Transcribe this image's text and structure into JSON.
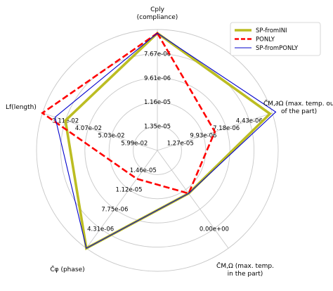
{
  "chart_data": {
    "type": "radar",
    "axes": [
      {
        "id": "cply",
        "label": [
          "Cply",
          "(compliance)"
        ],
        "ticks": [
          "7.67e-06",
          "9.61e-06",
          "1.16e-05",
          "1.35e-05"
        ]
      },
      {
        "id": "cm_dom",
        "label": [
          "C̄M,∂Ω (max. temp. out",
          "of the part)"
        ],
        "ticks": [
          "4.43e-06",
          "7.18e-06",
          "9.93e-06",
          "1.27e-05"
        ]
      },
      {
        "id": "cm_om",
        "label": [
          "C̄M,Ω (max. temp.",
          "in the part)"
        ],
        "ticks": [
          "0.00e+00"
        ]
      },
      {
        "id": "cphi",
        "label": [
          "C̄φ (phase)"
        ],
        "ticks": [
          "4.31e-06",
          "7.75e-06",
          "1.12e-05",
          "1.46e-05"
        ]
      },
      {
        "id": "lf",
        "label": [
          "Lf(length)"
        ],
        "ticks": [
          "3.11e-02",
          "4.07e-02",
          "5.03e-02",
          "5.99e-02"
        ]
      }
    ],
    "rings": 5,
    "series": [
      {
        "name": "SP-fromINI",
        "color": "#bcbd22",
        "style": "solid",
        "values": [
          0.97,
          0.98,
          0.44,
          1.0,
          0.8
        ]
      },
      {
        "name": "PONLY",
        "color": "#ff0000",
        "style": "dashed",
        "values": [
          0.97,
          0.5,
          0.44,
          0.29,
          1.0
        ]
      },
      {
        "name": "SP-fromPONLY",
        "color": "#0000cc",
        "style": "solid",
        "values": [
          0.97,
          1.03,
          0.44,
          1.0,
          0.89
        ]
      }
    ],
    "legend_position": "top-right"
  }
}
